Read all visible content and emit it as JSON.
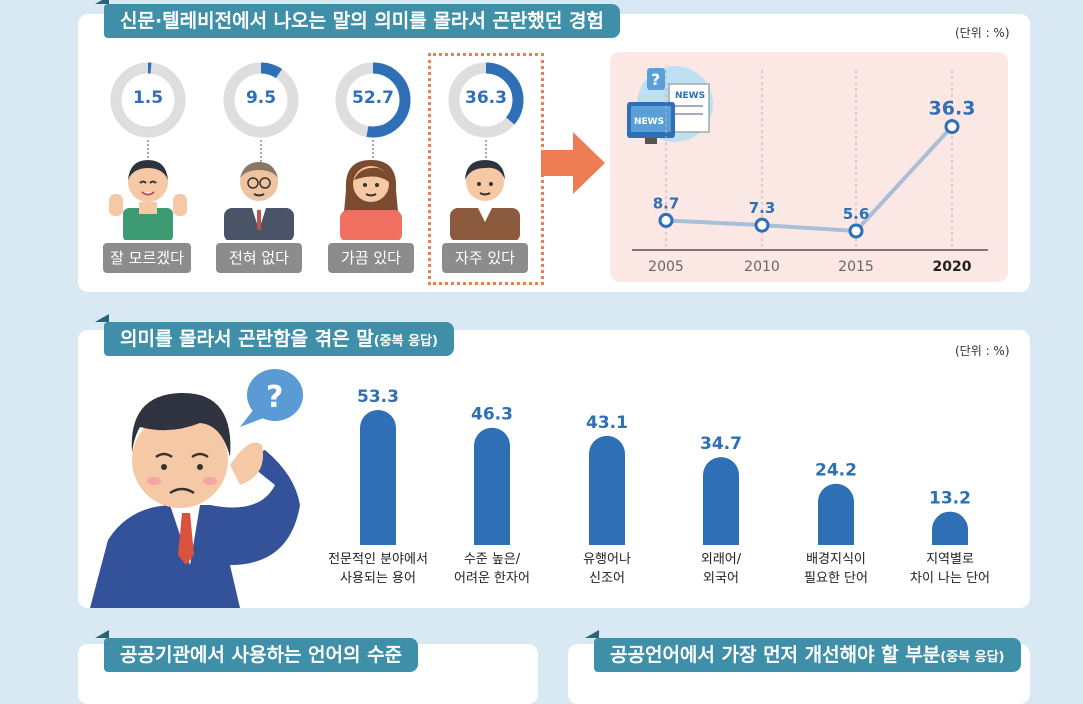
{
  "section1": {
    "title": "신문·텔레비전에서 나오는 말의 의미를 몰라서 곤란했던 경험",
    "unit": "(단위 : %)",
    "answers": [
      {
        "value": "1.5",
        "label": "잘 모르겠다",
        "pct": 1.5
      },
      {
        "value": "9.5",
        "label": "전혀 없다",
        "pct": 9.5
      },
      {
        "value": "52.7",
        "label": "가끔 있다",
        "pct": 52.7
      },
      {
        "value": "36.3",
        "label": "자주 있다",
        "pct": 36.3
      }
    ]
  },
  "section2": {
    "title": "의미를 몰라서 곤란함을 겪은 말",
    "title_note": "(중복 응답)",
    "unit": "(단위 : %)"
  },
  "section3": {
    "title": "공공기관에서 사용하는 언어의 수준"
  },
  "section4": {
    "title": "공공언어에서 가장 먼저 개선해야 할 부분",
    "title_note": "(중복 응답)"
  },
  "colors": {
    "accent": "#2e6fb6",
    "tab": "#3f8fa9",
    "arrow": "#ef7d54",
    "line": "#a9bed8",
    "panel": "#fbe7e4"
  },
  "chart_data": [
    {
      "type": "line",
      "x": [
        "2005",
        "2010",
        "2015",
        "2020"
      ],
      "series": [
        {
          "values": [
            8.7,
            7.3,
            5.6,
            36.3
          ]
        }
      ],
      "ylim": [
        0,
        40
      ]
    },
    {
      "type": "bar",
      "categories": [
        "전문적인 분야에서 사용되는 용어",
        "수준 높은/ 어려운 한자어",
        "유행어나 신조어",
        "외래어/ 외국어",
        "배경지식이 필요한 단어",
        "지역별로 차이 나는 단어"
      ],
      "category_lines": [
        [
          "전문적인 분야에서",
          "사용되는 용어"
        ],
        [
          "수준 높은/",
          "어려운 한자어"
        ],
        [
          "유행어나",
          "신조어"
        ],
        [
          "외래어/",
          "외국어"
        ],
        [
          "배경지식이",
          "필요한 단어"
        ],
        [
          "지역별로",
          "차이 나는 단어"
        ]
      ],
      "values": [
        53.3,
        46.3,
        43.1,
        34.7,
        24.2,
        13.2
      ],
      "ylim": [
        0,
        60
      ]
    }
  ]
}
